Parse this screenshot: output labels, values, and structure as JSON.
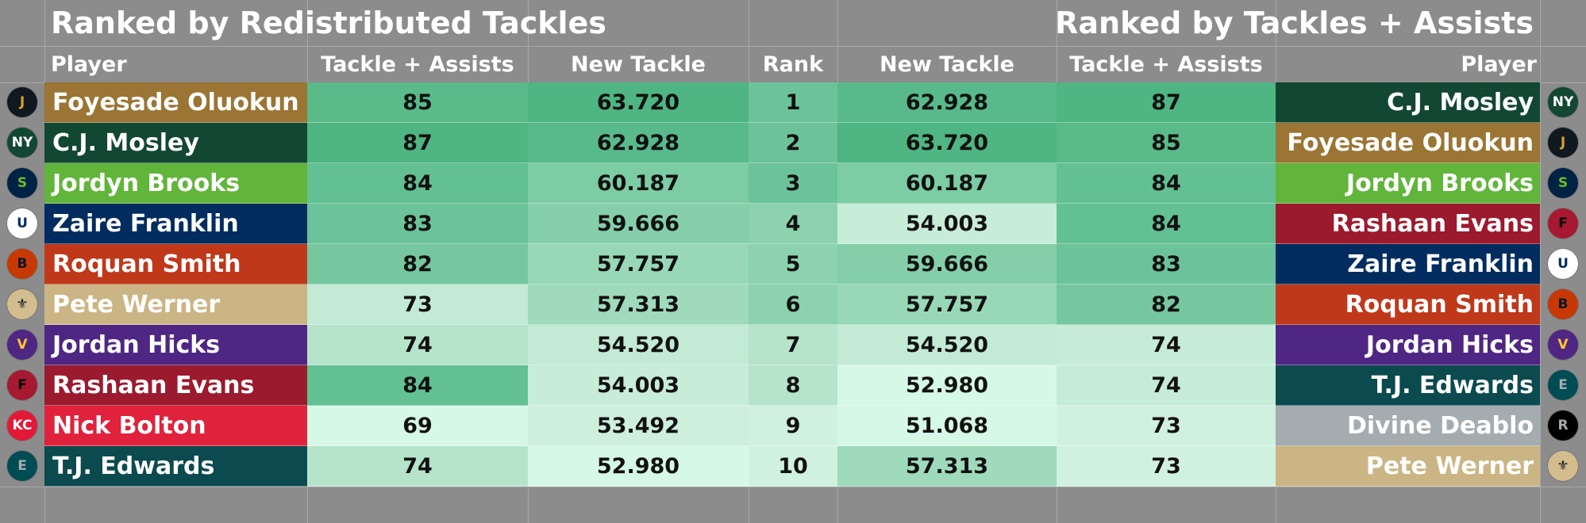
{
  "left_title": "Ranked by Redistributed Tackles",
  "right_title": "Ranked by Tackles + Assists",
  "headers": {
    "player": "Player",
    "tackle_assists": "Tackle + Assists",
    "new_tackle": "New Tackle",
    "rank": "Rank"
  },
  "colors": {
    "band1": "#4fb582",
    "band2": "#58ba8a",
    "band3": "#69c296",
    "band4": "#86d0aa",
    "band5": "#a6ddbf",
    "band6": "#c0e9d2",
    "band7": "#d6f8e6"
  },
  "left_rows": [
    {
      "player": "Foyesade Oluokun",
      "team_icon": "jaguars-logo-icon",
      "team_color": "#9a7534",
      "logo_bg": "#101820",
      "logo_fg": "#d7a22a",
      "logo_text": "J",
      "tackle_assists": "85",
      "ta_color": "#5aba8a",
      "new_tackle": "63.720",
      "nt_color": "#4fb582"
    },
    {
      "player": "C.J. Mosley",
      "team_icon": "jets-logo-icon",
      "team_color": "#124734",
      "logo_bg": "#124734",
      "logo_fg": "#ffffff",
      "logo_text": "NY",
      "tackle_assists": "87",
      "ta_color": "#4fb582",
      "new_tackle": "62.928",
      "nt_color": "#58ba8a"
    },
    {
      "player": "Jordyn Brooks",
      "team_icon": "seahawks-logo-icon",
      "team_color": "#62b53b",
      "logo_bg": "#002244",
      "logo_fg": "#69be28",
      "logo_text": "S",
      "tackle_assists": "84",
      "ta_color": "#63c092",
      "new_tackle": "60.187",
      "nt_color": "#7ccca4"
    },
    {
      "player": "Zaire Franklin",
      "team_icon": "colts-logo-icon",
      "team_color": "#002c5f",
      "logo_bg": "#ffffff",
      "logo_fg": "#002c5f",
      "logo_text": "U",
      "tackle_assists": "83",
      "ta_color": "#6cc399",
      "new_tackle": "59.666",
      "nt_color": "#84cfa9"
    },
    {
      "player": "Roquan Smith",
      "team_icon": "bears-logo-icon",
      "team_color": "#c0381a",
      "logo_bg": "#c83803",
      "logo_fg": "#0b162a",
      "logo_text": "B",
      "tackle_assists": "82",
      "ta_color": "#76c7a0",
      "new_tackle": "57.757",
      "nt_color": "#98d8b6"
    },
    {
      "player": "Pete Werner",
      "team_icon": "saints-logo-icon",
      "team_color": "#cbb584",
      "logo_bg": "#d3bc8d",
      "logo_fg": "#101820",
      "logo_text": "⚜",
      "tackle_assists": "73",
      "ta_color": "#c2ead4",
      "new_tackle": "57.313",
      "nt_color": "#9edabb"
    },
    {
      "player": "Jordan Hicks",
      "team_icon": "vikings-logo-icon",
      "team_color": "#4f2683",
      "logo_bg": "#4f2683",
      "logo_fg": "#ffc62f",
      "logo_text": "V",
      "tackle_assists": "74",
      "ta_color": "#b6e4cb",
      "new_tackle": "54.520",
      "nt_color": "#c2ead4"
    },
    {
      "player": "Rashaan Evans",
      "team_icon": "falcons-logo-icon",
      "team_color": "#9c1a2e",
      "logo_bg": "#a71930",
      "logo_fg": "#000000",
      "logo_text": "F",
      "tackle_assists": "84",
      "ta_color": "#63c092",
      "new_tackle": "54.003",
      "nt_color": "#c7ecd8"
    },
    {
      "player": "Nick Bolton",
      "team_icon": "chiefs-logo-icon",
      "team_color": "#e0223c",
      "logo_bg": "#e31837",
      "logo_fg": "#ffffff",
      "logo_text": "KC",
      "tackle_assists": "69",
      "ta_color": "#d6f8e6",
      "new_tackle": "53.492",
      "nt_color": "#cdefdc"
    },
    {
      "player": "T.J. Edwards",
      "team_icon": "eagles-logo-icon",
      "team_color": "#0b4a4f",
      "logo_bg": "#004c54",
      "logo_fg": "#a5acaf",
      "logo_text": "E",
      "tackle_assists": "74",
      "ta_color": "#b6e4cb",
      "new_tackle": "52.980",
      "nt_color": "#d6f8e6"
    }
  ],
  "ranks": [
    "1",
    "2",
    "3",
    "4",
    "5",
    "6",
    "7",
    "8",
    "9",
    "10"
  ],
  "right_rows": [
    {
      "player": "C.J. Mosley",
      "team_icon": "jets-logo-icon",
      "team_color": "#124734",
      "logo_bg": "#124734",
      "logo_fg": "#ffffff",
      "logo_text": "NY",
      "new_tackle": "62.928",
      "nt_color": "#58ba8a",
      "tackle_assists": "87",
      "ta_color": "#4fb582"
    },
    {
      "player": "Foyesade Oluokun",
      "team_icon": "jaguars-logo-icon",
      "team_color": "#9a7534",
      "logo_bg": "#101820",
      "logo_fg": "#d7a22a",
      "logo_text": "J",
      "new_tackle": "63.720",
      "nt_color": "#4fb582",
      "tackle_assists": "85",
      "ta_color": "#5aba8a"
    },
    {
      "player": "Jordyn Brooks",
      "team_icon": "seahawks-logo-icon",
      "team_color": "#62b53b",
      "logo_bg": "#002244",
      "logo_fg": "#69be28",
      "logo_text": "S",
      "new_tackle": "60.187",
      "nt_color": "#7ccca4",
      "tackle_assists": "84",
      "ta_color": "#63c092"
    },
    {
      "player": "Rashaan Evans",
      "team_icon": "falcons-logo-icon",
      "team_color": "#9c1a2e",
      "logo_bg": "#a71930",
      "logo_fg": "#000000",
      "logo_text": "F",
      "new_tackle": "54.003",
      "nt_color": "#c7ecd8",
      "tackle_assists": "84",
      "ta_color": "#63c092"
    },
    {
      "player": "Zaire Franklin",
      "team_icon": "colts-logo-icon",
      "team_color": "#002c5f",
      "logo_bg": "#ffffff",
      "logo_fg": "#002c5f",
      "logo_text": "U",
      "new_tackle": "59.666",
      "nt_color": "#84cfa9",
      "tackle_assists": "83",
      "ta_color": "#6cc399"
    },
    {
      "player": "Roquan Smith",
      "team_icon": "bears-logo-icon",
      "team_color": "#c0381a",
      "logo_bg": "#c83803",
      "logo_fg": "#0b162a",
      "logo_text": "B",
      "new_tackle": "57.757",
      "nt_color": "#98d8b6",
      "tackle_assists": "82",
      "ta_color": "#76c7a0"
    },
    {
      "player": "Jordan Hicks",
      "team_icon": "vikings-logo-icon",
      "team_color": "#4f2683",
      "logo_bg": "#4f2683",
      "logo_fg": "#ffc62f",
      "logo_text": "V",
      "new_tackle": "54.520",
      "nt_color": "#c2ead4",
      "tackle_assists": "74",
      "ta_color": "#c6ecd7"
    },
    {
      "player": "T.J. Edwards",
      "team_icon": "eagles-logo-icon",
      "team_color": "#0b4a4f",
      "logo_bg": "#004c54",
      "logo_fg": "#a5acaf",
      "logo_text": "E",
      "new_tackle": "52.980",
      "nt_color": "#d6f8e6",
      "tackle_assists": "74",
      "ta_color": "#c6ecd7"
    },
    {
      "player": "Divine Deablo",
      "team_icon": "raiders-logo-icon",
      "team_color": "#a5acaf",
      "logo_bg": "#000000",
      "logo_fg": "#a5acaf",
      "logo_text": "R",
      "new_tackle": "51.068",
      "nt_color": "#d6f8e6",
      "tackle_assists": "73",
      "ta_color": "#d0f1df"
    },
    {
      "player": "Pete Werner",
      "team_icon": "saints-logo-icon",
      "team_color": "#cbb584",
      "logo_bg": "#d3bc8d",
      "logo_fg": "#101820",
      "logo_text": "⚜",
      "new_tackle": "57.313",
      "nt_color": "#9edabb",
      "tackle_assists": "73",
      "ta_color": "#d0f1df"
    }
  ]
}
